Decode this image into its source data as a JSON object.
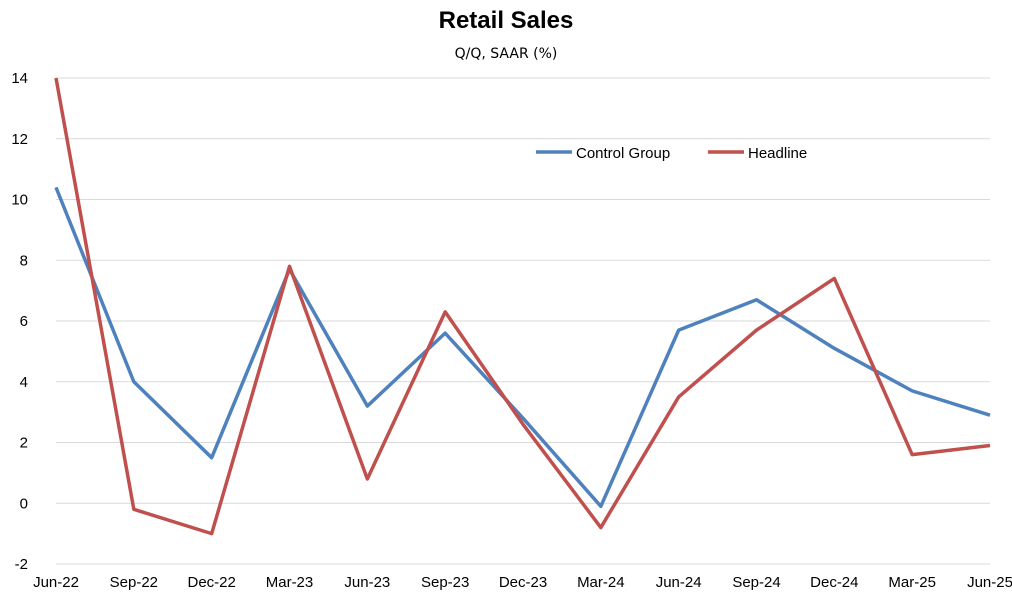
{
  "chart_data": {
    "type": "line",
    "title": "Retail Sales",
    "subtitle": "Q/Q, SAAR (%)",
    "xlabel": "",
    "ylabel": "",
    "categories": [
      "Jun-22",
      "Sep-22",
      "Dec-22",
      "Mar-23",
      "Jun-23",
      "Sep-23",
      "Dec-23",
      "Mar-24",
      "Jun-24",
      "Sep-24",
      "Dec-24",
      "Mar-25",
      "Jun-25"
    ],
    "ylim": [
      -2,
      14
    ],
    "yticks": [
      "-2",
      "0",
      "2",
      "4",
      "6",
      "8",
      "10",
      "12",
      "14"
    ],
    "grid": "horizontal",
    "legend_position": "top-right",
    "series": [
      {
        "name": "Control Group",
        "color": "#4F81BD",
        "values": [
          10.4,
          4.0,
          1.5,
          7.7,
          3.2,
          5.6,
          2.8,
          -0.1,
          5.7,
          6.7,
          5.1,
          3.7,
          2.9
        ]
      },
      {
        "name": "Headline",
        "color": "#C0504D",
        "values": [
          14.0,
          -0.2,
          -1.0,
          7.8,
          0.8,
          6.3,
          2.6,
          -0.8,
          3.5,
          5.7,
          7.4,
          1.6,
          1.9
        ]
      }
    ]
  }
}
